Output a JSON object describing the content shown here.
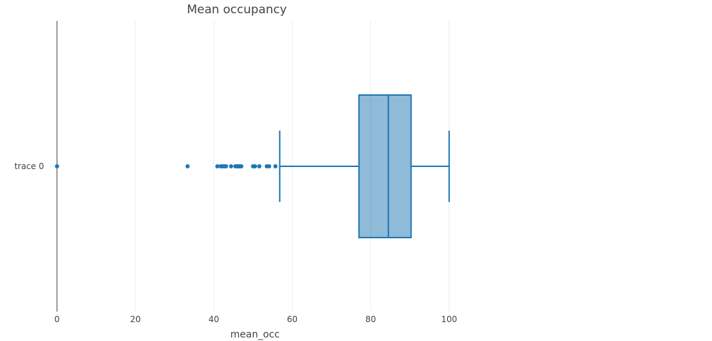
{
  "chart_data": {
    "type": "box",
    "orientation": "horizontal",
    "title": "Mean occupancy",
    "xlabel": "mean_occ",
    "ylabel": "",
    "xlim": [
      -1,
      102
    ],
    "x_ticks": [
      0,
      20,
      40,
      60,
      80,
      100
    ],
    "grid": true,
    "series": [
      {
        "name": "trace 0",
        "color": "#1f77b4",
        "fill": "rgba(31,119,180,0.5)",
        "box": {
          "lower_fence": 56.8,
          "q1": 77.0,
          "median": 84.5,
          "q3": 90.3,
          "upper_fence": 100.0
        },
        "outliers": [
          0,
          33.3,
          40.9,
          41.8,
          42.2,
          42.7,
          43.1,
          44.4,
          45.5,
          45.9,
          46.2,
          46.5,
          46.8,
          47.0,
          50.0,
          50.5,
          51.6,
          53.5,
          54.1,
          55.7
        ]
      }
    ]
  }
}
